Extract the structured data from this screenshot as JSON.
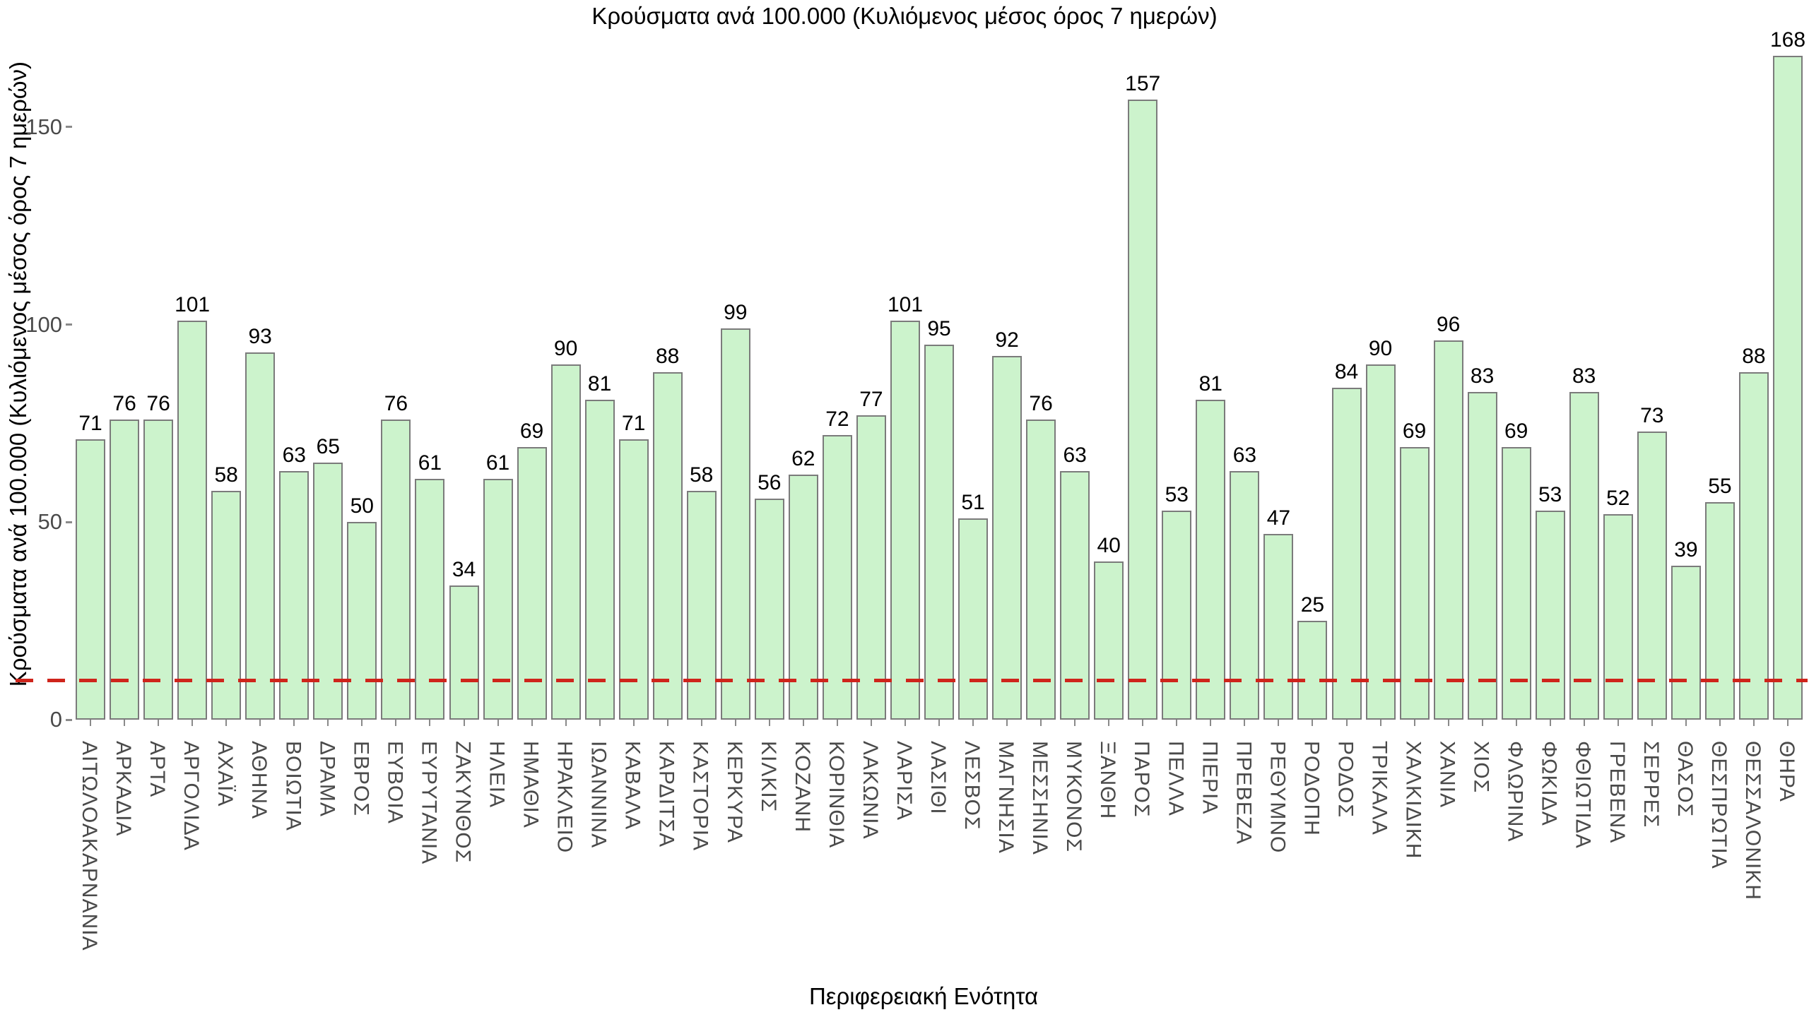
{
  "chart": {
    "title": "Κρούσματα ανά 100.000 (Κυλιόμενος μέσος όρος 7 ημερών)",
    "y_axis_label": "Κρούσματα ανά 100.000 (Κυλιόμενος μέσος όρος 7 ημερών)",
    "x_axis_label": "Περιφερειακή Ενότητα"
  },
  "chart_data": {
    "type": "bar",
    "title": "Κρούσματα ανά 100.000 (Κυλιόμενος μέσος όρος 7 ημερών)",
    "xlabel": "Περιφερειακή Ενότητα",
    "ylabel": "Κρούσματα ανά 100.000 (Κυλιόμενος μέσος όρος 7 ημερών)",
    "categories": [
      "ΑΙΤΩΛΟΑΚΑΡΝΑΝΙΑ",
      "ΑΡΚΑΔΙΑ",
      "ΑΡΤΑ",
      "ΑΡΓΟΛΙΔΑ",
      "ΑΧΑΪΑ",
      "ΑΘΗΝΑ",
      "ΒΟΙΩΤΙΑ",
      "ΔΡΑΜΑ",
      "ΕΒΡΟΣ",
      "ΕΥΒΟΙΑ",
      "ΕΥΡΥΤΑΝΙΑ",
      "ΖΑΚΥΝΘΟΣ",
      "ΗΛΕΙΑ",
      "ΗΜΑΘΙΑ",
      "ΗΡΑΚΛΕΙΟ",
      "ΙΩΑΝΝΙΝΑ",
      "ΚΑΒΑΛΑ",
      "ΚΑΡΔΙΤΣΑ",
      "ΚΑΣΤΟΡΙΑ",
      "ΚΕΡΚΥΡΑ",
      "ΚΙΛΚΙΣ",
      "ΚΟΖΑΝΗ",
      "ΚΟΡΙΝΘΙΑ",
      "ΛΑΚΩΝΙΑ",
      "ΛΑΡΙΣΑ",
      "ΛΑΣΙΘΙ",
      "ΛΕΣΒΟΣ",
      "ΜΑΓΝΗΣΙΑ",
      "ΜΕΣΣΗΝΙΑ",
      "ΜΥΚΟΝΟΣ",
      "ΞΑΝΘΗ",
      "ΠΑΡΟΣ",
      "ΠΕΛΛΑ",
      "ΠΙΕΡΙΑ",
      "ΠΡΕΒΕΖΑ",
      "ΡΕΘΥΜΝΟ",
      "ΡΟΔΟΠΗ",
      "ΡΟΔΟΣ",
      "ΤΡΙΚΑΛΑ",
      "ΧΑΛΚΙΔΙΚΗ",
      "ΧΑΝΙΑ",
      "ΧΙΟΣ",
      "ΦΛΩΡΙΝΑ",
      "ΦΩΚΙΔΑ",
      "ΦΘΙΩΤΙΔΑ",
      "ΓΡΕΒΕΝΑ",
      "ΣΕΡΡΕΣ",
      "ΘΑΣΟΣ",
      "ΘΕΣΠΡΩΤΙΑ",
      "ΘΕΣΣΑΛΟΝΙΚΗ",
      "ΘΗΡΑ"
    ],
    "values": [
      71,
      76,
      76,
      101,
      58,
      93,
      63,
      65,
      50,
      76,
      61,
      34,
      61,
      69,
      90,
      81,
      71,
      88,
      58,
      99,
      56,
      62,
      72,
      77,
      101,
      95,
      51,
      92,
      76,
      63,
      40,
      157,
      53,
      81,
      63,
      47,
      25,
      84,
      90,
      69,
      96,
      83,
      69,
      53,
      83,
      52,
      73,
      39,
      55,
      88,
      168
    ],
    "yticks": [
      0,
      50,
      100,
      150
    ],
    "ylim": [
      0,
      175
    ],
    "grid": false,
    "legend": "none",
    "value_labels_shown": true,
    "reference_line": {
      "value": 10,
      "style": "dashed",
      "color": "#cf241b"
    },
    "bar_fill_color": "#ccf3cc",
    "bar_border_color": "#7b7b7b",
    "tick_label_color": "#4a4a4a"
  }
}
